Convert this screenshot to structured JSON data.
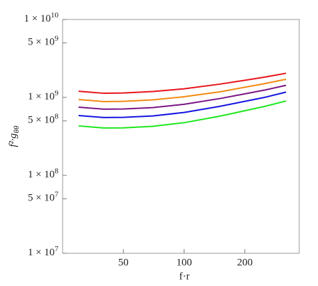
{
  "chart_data": {
    "type": "line",
    "xlabel": "f·r",
    "ylabel": "f²·g",
    "ylabel_sub": "θθ",
    "x": [
      30,
      40,
      50,
      70,
      100,
      150,
      200,
      250,
      320
    ],
    "xscale": "log",
    "yscale": "log",
    "xlim": [
      25,
      372
    ],
    "ylim": [
      10000000,
      10000000000
    ],
    "xticks": [
      50,
      100,
      200
    ],
    "yticks": [
      {
        "value": 10000000,
        "label": "1 × 10",
        "superscript": "7"
      },
      {
        "value": 50000000,
        "label": "5 × 10",
        "superscript": "7"
      },
      {
        "value": 100000000,
        "label": "1 × 10",
        "superscript": "8"
      },
      {
        "value": 500000000,
        "label": "5 × 10",
        "superscript": "8"
      },
      {
        "value": 1000000000,
        "label": "1 × 10",
        "superscript": "9"
      },
      {
        "value": 5000000000,
        "label": "5 × 10",
        "superscript": "9"
      },
      {
        "value": 10000000000,
        "label": "1 × 10",
        "superscript": "10"
      }
    ],
    "series": [
      {
        "color": "#e8141a",
        "values": [
          1200000000,
          1130000000,
          1140000000,
          1190000000,
          1290000000,
          1480000000,
          1660000000,
          1820000000,
          2040000000
        ]
      },
      {
        "color": "#f28a12",
        "values": [
          940000000,
          885000000,
          890000000,
          930000000,
          1020000000,
          1180000000,
          1350000000,
          1500000000,
          1710000000
        ]
      },
      {
        "color": "#7a1585",
        "values": [
          750000000,
          706000000,
          710000000,
          741000000,
          817000000,
          966000000,
          1110000000,
          1240000000,
          1430000000
        ]
      },
      {
        "color": "#1414e0",
        "values": [
          586000000,
          552000000,
          555000000,
          579000000,
          641000000,
          767000000,
          891000000,
          1000000000,
          1170000000
        ]
      },
      {
        "color": "#1ee61e",
        "values": [
          431000000,
          406000000,
          407000000,
          426000000,
          474000000,
          574000000,
          675000000,
          766000000,
          899000000
        ]
      }
    ]
  }
}
